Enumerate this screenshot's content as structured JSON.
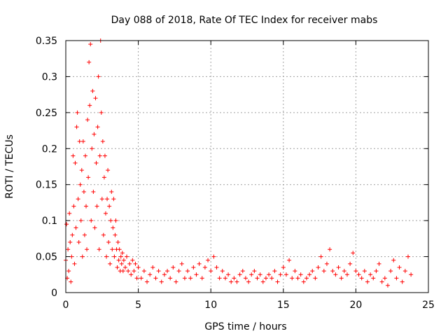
{
  "chart_data": {
    "type": "scatter",
    "title": "Day 088 of 2018, Rate Of TEC Index for receiver mabs",
    "xlabel": "GPS time / hours",
    "ylabel": "ROTI / TECUs",
    "xlim": [
      0,
      25
    ],
    "ylim": [
      0,
      0.35
    ],
    "grid": true,
    "x_ticks": [
      0,
      5,
      10,
      15,
      20,
      25
    ],
    "x_tick_labels": [
      "0",
      "5",
      "10",
      "15",
      "20",
      "25"
    ],
    "y_ticks": [
      0,
      0.05,
      0.1,
      0.15,
      0.2,
      0.25,
      0.3,
      0.35
    ],
    "y_tick_labels": [
      "0",
      "0.05",
      "0.1",
      "0.15",
      "0.2",
      "0.25",
      "0.3",
      "0.35"
    ],
    "marker": "+",
    "color": "#ff0000",
    "series": [
      {
        "name": "ROTI",
        "points": [
          [
            0.0,
            0.045
          ],
          [
            0.05,
            0.095
          ],
          [
            0.1,
            0.02
          ],
          [
            0.15,
            0.06
          ],
          [
            0.2,
            0.03
          ],
          [
            0.25,
            0.11
          ],
          [
            0.3,
            0.07
          ],
          [
            0.35,
            0.015
          ],
          [
            0.4,
            0.05
          ],
          [
            0.45,
            0.08
          ],
          [
            0.5,
            0.19
          ],
          [
            0.55,
            0.12
          ],
          [
            0.6,
            0.04
          ],
          [
            0.65,
            0.18
          ],
          [
            0.7,
            0.09
          ],
          [
            0.75,
            0.23
          ],
          [
            0.8,
            0.25
          ],
          [
            0.85,
            0.13
          ],
          [
            0.9,
            0.07
          ],
          [
            0.95,
            0.21
          ],
          [
            1.0,
            0.15
          ],
          [
            1.05,
            0.1
          ],
          [
            1.1,
            0.17
          ],
          [
            1.15,
            0.05
          ],
          [
            1.2,
            0.21
          ],
          [
            1.25,
            0.14
          ],
          [
            1.3,
            0.08
          ],
          [
            1.35,
            0.19
          ],
          [
            1.4,
            0.12
          ],
          [
            1.45,
            0.06
          ],
          [
            1.5,
            0.24
          ],
          [
            1.55,
            0.16
          ],
          [
            1.6,
            0.32
          ],
          [
            1.65,
            0.26
          ],
          [
            1.7,
            0.345
          ],
          [
            1.75,
            0.1
          ],
          [
            1.8,
            0.2
          ],
          [
            1.85,
            0.28
          ],
          [
            1.9,
            0.14
          ],
          [
            1.95,
            0.22
          ],
          [
            2.0,
            0.09
          ],
          [
            2.05,
            0.27
          ],
          [
            2.1,
            0.18
          ],
          [
            2.15,
            0.12
          ],
          [
            2.2,
            0.23
          ],
          [
            2.25,
            0.3
          ],
          [
            2.3,
            0.06
          ],
          [
            2.35,
            0.19
          ],
          [
            2.4,
            0.35
          ],
          [
            2.45,
            0.25
          ],
          [
            2.5,
            0.13
          ],
          [
            2.55,
            0.21
          ],
          [
            2.6,
            0.08
          ],
          [
            2.65,
            0.16
          ],
          [
            2.7,
            0.19
          ],
          [
            2.75,
            0.11
          ],
          [
            2.8,
            0.05
          ],
          [
            2.85,
            0.13
          ],
          [
            2.9,
            0.17
          ],
          [
            2.95,
            0.07
          ],
          [
            3.0,
            0.12
          ],
          [
            3.05,
            0.04
          ],
          [
            3.1,
            0.1
          ],
          [
            3.15,
            0.14
          ],
          [
            3.2,
            0.06
          ],
          [
            3.25,
            0.09
          ],
          [
            3.3,
            0.13
          ],
          [
            3.35,
            0.05
          ],
          [
            3.4,
            0.08
          ],
          [
            3.45,
            0.1
          ],
          [
            3.5,
            0.06
          ],
          [
            3.55,
            0.035
          ],
          [
            3.6,
            0.07
          ],
          [
            3.65,
            0.045
          ],
          [
            3.7,
            0.06
          ],
          [
            3.75,
            0.03
          ],
          [
            3.8,
            0.05
          ],
          [
            3.85,
            0.04
          ],
          [
            3.9,
            0.055
          ],
          [
            3.95,
            0.03
          ],
          [
            4.0,
            0.045
          ],
          [
            4.1,
            0.035
          ],
          [
            4.2,
            0.05
          ],
          [
            4.3,
            0.03
          ],
          [
            4.4,
            0.04
          ],
          [
            4.5,
            0.025
          ],
          [
            4.6,
            0.045
          ],
          [
            4.7,
            0.03
          ],
          [
            4.8,
            0.04
          ],
          [
            4.9,
            0.02
          ],
          [
            5.0,
            0.035
          ],
          [
            5.2,
            0.02
          ],
          [
            5.4,
            0.03
          ],
          [
            5.6,
            0.015
          ],
          [
            5.8,
            0.025
          ],
          [
            6.0,
            0.035
          ],
          [
            6.2,
            0.02
          ],
          [
            6.4,
            0.03
          ],
          [
            6.6,
            0.015
          ],
          [
            6.8,
            0.025
          ],
          [
            7.0,
            0.03
          ],
          [
            7.2,
            0.02
          ],
          [
            7.4,
            0.035
          ],
          [
            7.6,
            0.015
          ],
          [
            7.8,
            0.03
          ],
          [
            8.0,
            0.04
          ],
          [
            8.2,
            0.02
          ],
          [
            8.4,
            0.03
          ],
          [
            8.6,
            0.02
          ],
          [
            8.8,
            0.035
          ],
          [
            9.0,
            0.025
          ],
          [
            9.2,
            0.04
          ],
          [
            9.4,
            0.02
          ],
          [
            9.6,
            0.035
          ],
          [
            9.8,
            0.045
          ],
          [
            10.0,
            0.03
          ],
          [
            10.2,
            0.05
          ],
          [
            10.4,
            0.035
          ],
          [
            10.6,
            0.02
          ],
          [
            10.8,
            0.03
          ],
          [
            11.0,
            0.02
          ],
          [
            11.2,
            0.025
          ],
          [
            11.4,
            0.015
          ],
          [
            11.6,
            0.02
          ],
          [
            11.8,
            0.015
          ],
          [
            12.0,
            0.025
          ],
          [
            12.2,
            0.03
          ],
          [
            12.4,
            0.02
          ],
          [
            12.6,
            0.015
          ],
          [
            12.8,
            0.025
          ],
          [
            13.0,
            0.03
          ],
          [
            13.2,
            0.02
          ],
          [
            13.4,
            0.025
          ],
          [
            13.6,
            0.015
          ],
          [
            13.8,
            0.02
          ],
          [
            14.0,
            0.025
          ],
          [
            14.2,
            0.02
          ],
          [
            14.4,
            0.03
          ],
          [
            14.6,
            0.015
          ],
          [
            14.8,
            0.025
          ],
          [
            15.0,
            0.035
          ],
          [
            15.2,
            0.025
          ],
          [
            15.4,
            0.045
          ],
          [
            15.6,
            0.02
          ],
          [
            15.8,
            0.03
          ],
          [
            16.0,
            0.02
          ],
          [
            16.2,
            0.025
          ],
          [
            16.4,
            0.015
          ],
          [
            16.6,
            0.02
          ],
          [
            16.8,
            0.025
          ],
          [
            17.0,
            0.03
          ],
          [
            17.2,
            0.02
          ],
          [
            17.4,
            0.035
          ],
          [
            17.6,
            0.05
          ],
          [
            17.8,
            0.03
          ],
          [
            18.0,
            0.04
          ],
          [
            18.2,
            0.06
          ],
          [
            18.4,
            0.03
          ],
          [
            18.6,
            0.025
          ],
          [
            18.8,
            0.035
          ],
          [
            19.0,
            0.02
          ],
          [
            19.2,
            0.03
          ],
          [
            19.4,
            0.025
          ],
          [
            19.6,
            0.04
          ],
          [
            19.8,
            0.055
          ],
          [
            20.0,
            0.03
          ],
          [
            20.2,
            0.025
          ],
          [
            20.4,
            0.02
          ],
          [
            20.6,
            0.03
          ],
          [
            20.8,
            0.015
          ],
          [
            21.0,
            0.025
          ],
          [
            21.2,
            0.02
          ],
          [
            21.4,
            0.03
          ],
          [
            21.6,
            0.04
          ],
          [
            21.8,
            0.015
          ],
          [
            22.0,
            0.02
          ],
          [
            22.2,
            0.01
          ],
          [
            22.4,
            0.03
          ],
          [
            22.6,
            0.045
          ],
          [
            22.8,
            0.02
          ],
          [
            23.0,
            0.035
          ],
          [
            23.2,
            0.015
          ],
          [
            23.4,
            0.03
          ],
          [
            23.6,
            0.05
          ],
          [
            23.8,
            0.025
          ]
        ]
      }
    ]
  }
}
